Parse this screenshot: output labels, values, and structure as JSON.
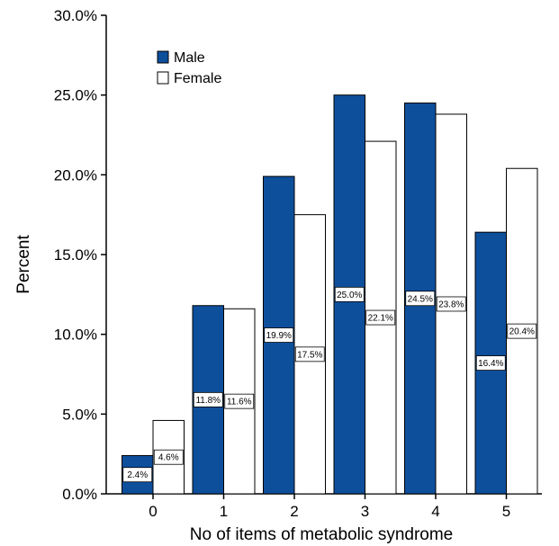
{
  "chart_data": {
    "type": "bar",
    "title": "",
    "xlabel": "No of items of metabolic syndrome",
    "ylabel": "Percent",
    "categories": [
      "0",
      "1",
      "2",
      "3",
      "4",
      "5"
    ],
    "series": [
      {
        "name": "Male",
        "values": [
          2.4,
          11.8,
          19.9,
          25.0,
          24.5,
          16.4
        ],
        "labels": [
          "2.4%",
          "11.8%",
          "19.9%",
          "25.0%",
          "24.5%",
          "16.4%"
        ],
        "color": "#0e4f9c"
      },
      {
        "name": "Female",
        "values": [
          4.6,
          11.6,
          17.5,
          22.1,
          23.8,
          20.4
        ],
        "labels": [
          "4.6%",
          "11.6%",
          "17.5%",
          "22.1%",
          "23.8%",
          "20.4%"
        ],
        "color": "#ffffff"
      }
    ],
    "ylim": [
      0,
      30
    ],
    "yticks": [
      0,
      5,
      10,
      15,
      20,
      25,
      30
    ],
    "ytick_labels": [
      "0.0%",
      "5.0%",
      "10.0%",
      "15.0%",
      "20.0%",
      "25.0%",
      "30.0%"
    ],
    "grid": false,
    "legend_position": "top-left"
  }
}
